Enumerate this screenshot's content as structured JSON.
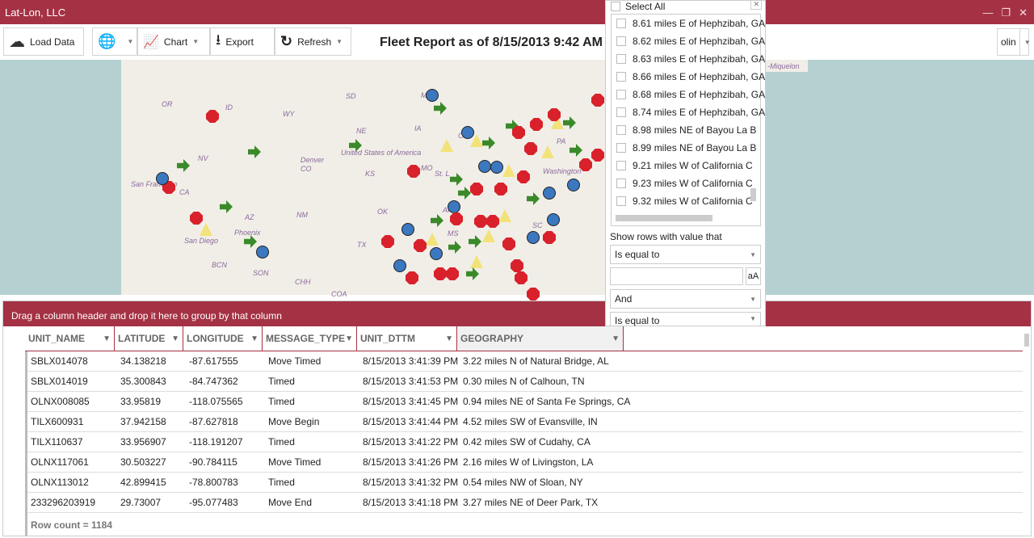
{
  "app": {
    "title": "Lat-Lon, LLC"
  },
  "toolbar": {
    "load_data": "Load Data",
    "chart": "Chart",
    "export": "Export",
    "refresh": "Refresh",
    "report_title": "Fleet Report as of 8/15/2013 9:42 AM",
    "user": "olin"
  },
  "map": {
    "labels": [
      "OR",
      "ID",
      "WY",
      "NV",
      "CA",
      "AZ",
      "NM",
      "CO",
      "Denver",
      "United States of America",
      "KS",
      "NE",
      "IA",
      "SD",
      "MN",
      "MO",
      "OK",
      "TX",
      "AR",
      "MS",
      "San Francisco",
      "Phoenix",
      "San Diego",
      "BCN",
      "SON",
      "CHH",
      "COA",
      "Washington",
      "PA",
      "SC",
      "St. L",
      "Chi",
      "-Miquelon"
    ],
    "legend_colors": {
      "stopped": "#d9212b",
      "timed": "#3b78c0",
      "moving": "#3a8a2a",
      "alert": "#f2e27a"
    }
  },
  "grid": {
    "group_hint": "Drag a column header and drop it here to group by that column",
    "columns": [
      "UNIT_NAME",
      "LATITUDE",
      "LONGITUDE",
      "MESSAGE_TYPE",
      "UNIT_DTTM",
      "GEOGRAPHY"
    ],
    "rows": [
      [
        "SBLX014078",
        "34.138218",
        "-87.617555",
        "Move Timed",
        "8/15/2013 3:41:39 PM",
        "3.22 miles N of Natural Bridge, AL"
      ],
      [
        "SBLX014019",
        "35.300843",
        "-84.747362",
        "Timed",
        "8/15/2013 3:41:53 PM",
        "0.30 miles N of Calhoun, TN"
      ],
      [
        "OLNX008085",
        "33.95819",
        "-118.075565",
        "Timed",
        "8/15/2013 3:41:45 PM",
        "0.94 miles NE of Santa Fe Springs, CA"
      ],
      [
        "TILX600931",
        "37.942158",
        "-87.627818",
        "Move Begin",
        "8/15/2013 3:41:44 PM",
        "4.52 miles SW of Evansville, IN"
      ],
      [
        "TILX110637",
        "33.956907",
        "-118.191207",
        "Timed",
        "8/15/2013 3:41:22 PM",
        "0.42 miles SW of Cudahy, CA"
      ],
      [
        "OLNX117061",
        "30.503227",
        "-90.784115",
        "Move Timed",
        "8/15/2013 3:41:26 PM",
        "2.16 miles W of Livingston, LA"
      ],
      [
        "OLNX113012",
        "42.899415",
        "-78.800783",
        "Timed",
        "8/15/2013 3:41:32 PM",
        "0.54 miles NW of Sloan, NY"
      ],
      [
        "233296203919",
        "29.73007",
        "-95.077483",
        "Move End",
        "8/15/2013 3:41:18 PM",
        "3.27 miles NE of Deer Park, TX"
      ]
    ],
    "row_count": "Row count = 1184"
  },
  "filter": {
    "select_all": "Select All",
    "items": [
      "8.61 miles E of Hephzibah, GA",
      "8.62 miles E of Hephzibah, GA",
      "8.63 miles E of Hephzibah, GA",
      "8.66 miles E of Hephzibah, GA",
      "8.68 miles E of Hephzibah, GA",
      "8.74 miles E of Hephzibah, GA",
      "8.98 miles NE of Bayou La B",
      "8.99 miles NE of Bayou La B",
      "9.21 miles W of California C",
      "9.23 miles W of California C",
      "9.32 miles W of California C"
    ],
    "show_rows": "Show rows with value that",
    "op1": "Is equal to",
    "value1": "",
    "case_btn": "aA",
    "logic": "And",
    "op2": "Is equal to"
  }
}
